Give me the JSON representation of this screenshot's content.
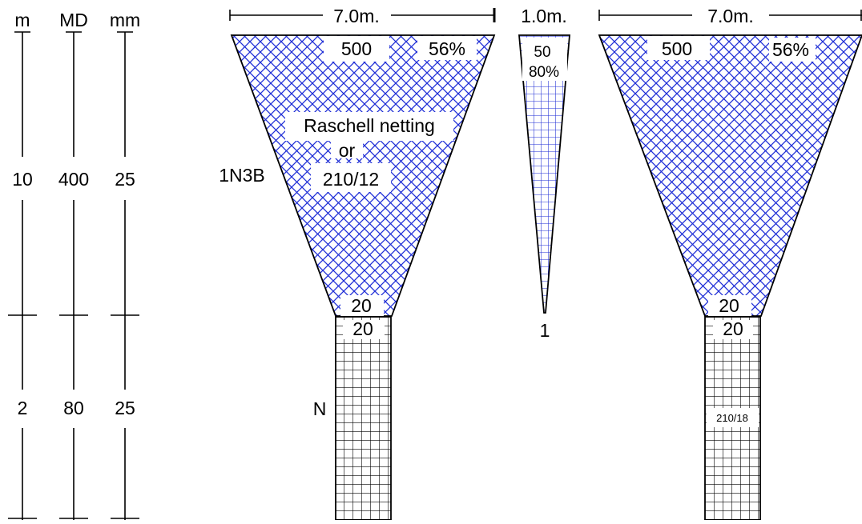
{
  "colors": {
    "mesh": "#1f2ed6",
    "line": "#000000",
    "background": "#ffffff"
  },
  "scale": {
    "headers": {
      "m": "m",
      "md": "MD",
      "mm": "mm"
    },
    "section1": {
      "m": "10",
      "md": "400",
      "mm": "25"
    },
    "section2": {
      "m": "2",
      "md": "80",
      "mm": "25"
    }
  },
  "panel_left": {
    "width_label": "7.0m.",
    "top_meshes": "500",
    "taper": "56%",
    "material_line1": "Raschell netting",
    "material_line2": "or",
    "material_line3": "210/12",
    "side_code": "1N3B",
    "bottom_meshes": "20",
    "extension_meshes": "20",
    "extension_side_code": "N"
  },
  "panel_middle": {
    "width_label": "1.0m.",
    "top_meshes": "50",
    "taper": "80%",
    "bottom_meshes": "1"
  },
  "panel_right": {
    "width_label": "7.0m.",
    "top_meshes": "500",
    "taper": "56%",
    "bottom_meshes": "20",
    "extension_meshes": "20",
    "extension_material": "210/18"
  }
}
